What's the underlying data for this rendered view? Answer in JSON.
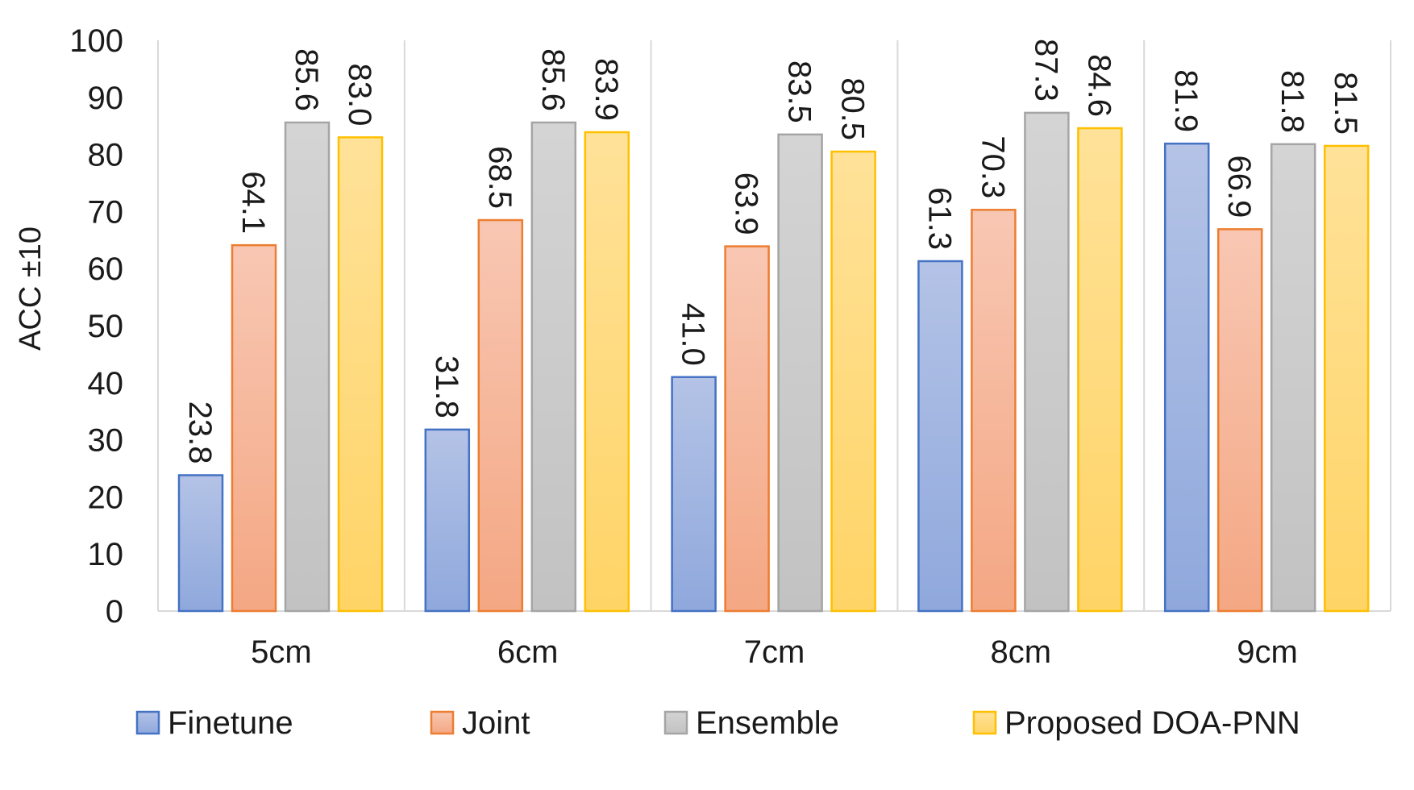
{
  "chart_data": {
    "type": "bar",
    "title": "",
    "xlabel": "",
    "ylabel": "ACC ±10",
    "ylim": [
      0,
      100
    ],
    "yticks": [
      0,
      10,
      20,
      30,
      40,
      50,
      60,
      70,
      80,
      90,
      100
    ],
    "categories": [
      "5cm",
      "6cm",
      "7cm",
      "8cm",
      "9cm"
    ],
    "series": [
      {
        "name": "Finetune",
        "values": [
          23.8,
          31.8,
          41.0,
          61.3,
          81.9
        ],
        "labels": [
          "23.8",
          "31.8",
          "41.0",
          "61.3",
          "81.9"
        ],
        "color": "#8FA8DC",
        "color_light": "#B4C3E6",
        "stroke": "#4472C4"
      },
      {
        "name": "Joint",
        "values": [
          64.1,
          68.5,
          63.9,
          70.3,
          66.9
        ],
        "labels": [
          "64.1",
          "68.5",
          "63.9",
          "70.3",
          "66.9"
        ],
        "color": "#F4A783",
        "color_light": "#F8C7B3",
        "stroke": "#ED7D31"
      },
      {
        "name": "Ensemble",
        "values": [
          85.6,
          85.6,
          83.5,
          87.3,
          81.8
        ],
        "labels": [
          "85.6",
          "85.6",
          "83.5",
          "87.3",
          "81.8"
        ],
        "color": "#C2C2C2",
        "color_light": "#D4D4D4",
        "stroke": "#A5A5A5"
      },
      {
        "name": "Proposed DOA-PNN",
        "values": [
          83.0,
          83.9,
          80.5,
          84.6,
          81.5
        ],
        "labels": [
          "83.0",
          "83.9",
          "80.5",
          "84.6",
          "81.5"
        ],
        "color": "#FFD466",
        "color_light": "#FFE299",
        "stroke": "#FFC000"
      }
    ],
    "grid": "vertical separators between categories",
    "legend_position": "bottom",
    "data_labels": "rotated 90° above each bar"
  }
}
